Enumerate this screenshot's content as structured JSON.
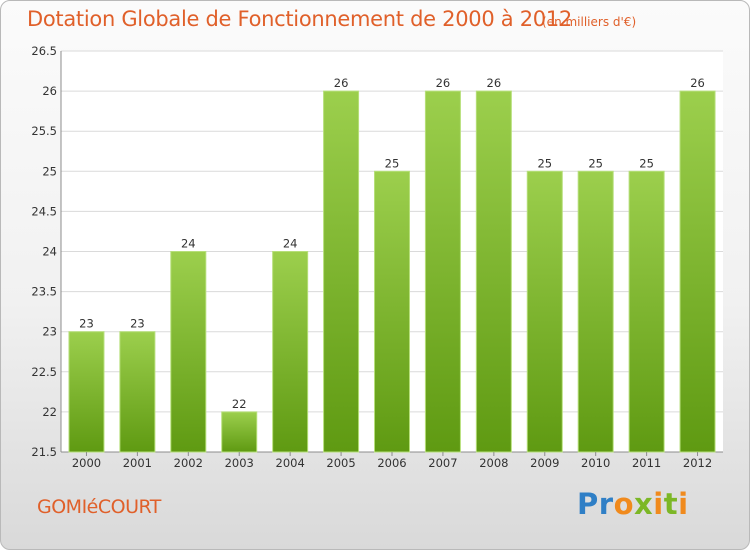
{
  "header": {
    "title": "Dotation Globale de Fonctionnement de 2000 à 2012",
    "unit": "(en milliers d'€)"
  },
  "footer": {
    "commune": "GOMIéCOURT",
    "logo": "Proxiti"
  },
  "colors": {
    "title": "#e0602a",
    "bar_top": "#9ccf4d",
    "bar_bottom": "#5f9a12",
    "grid": "#dadada",
    "text": "#333333"
  },
  "chart_data": {
    "type": "bar",
    "title": "Dotation Globale de Fonctionnement de 2000 à 2012",
    "subtitle": "(en milliers d'€)",
    "categories": [
      "2000",
      "2001",
      "2002",
      "2003",
      "2004",
      "2005",
      "2006",
      "2007",
      "2008",
      "2009",
      "2010",
      "2011",
      "2012"
    ],
    "values": [
      23,
      23,
      24,
      22,
      24,
      26,
      25,
      26,
      26,
      25,
      25,
      25,
      26
    ],
    "data_labels": [
      "23",
      "23",
      "24",
      "22",
      "24",
      "26",
      "25",
      "26",
      "26",
      "25",
      "25",
      "25",
      "26"
    ],
    "ylim": [
      21.5,
      26.5
    ],
    "yticks": [
      "21.5",
      "22",
      "22.5",
      "23",
      "23.5",
      "24",
      "24.5",
      "25",
      "25.5",
      "26",
      "26.5"
    ],
    "xlabel": "",
    "ylabel": "",
    "grid": true,
    "legend": "none"
  }
}
